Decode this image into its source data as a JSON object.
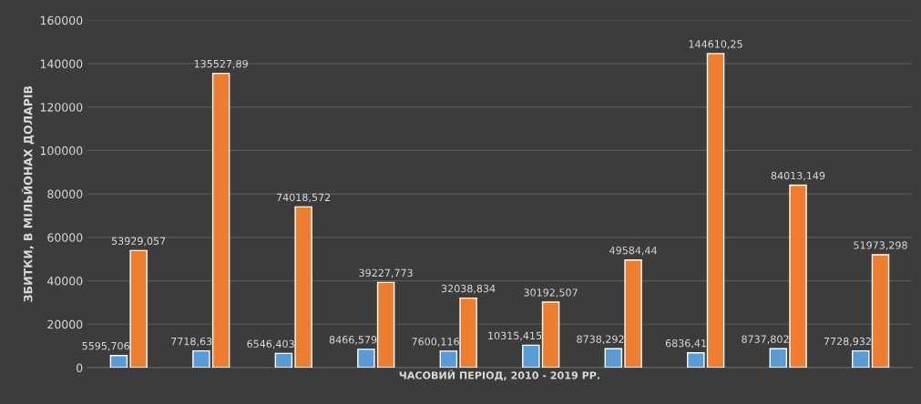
{
  "chart_data": {
    "type": "bar",
    "xlabel": "ЧАСОВИЙ ПЕРІОД, 2010 - 2019 РР.",
    "ylabel": "ЗБИТКИ, В МІЛЬЙОНАХ ДОЛАРІВ",
    "categories": [
      null,
      null,
      null,
      null,
      null,
      null,
      null,
      null,
      null,
      null
    ],
    "series": [
      {
        "color": "#5b9bd5",
        "values": [
          5595.706,
          7718.63,
          6546.403,
          8466.579,
          7600.116,
          10315.415,
          8738.292,
          6836.41,
          8737.802,
          7728.932
        ],
        "value_labels": [
          "5595,706",
          "7718,63",
          "6546,403",
          "8466,579",
          "7600,116",
          "10315,415",
          "8738,292",
          "6836,41",
          "8737,802",
          "7728,932"
        ]
      },
      {
        "color": "#ed7d31",
        "values": [
          53929.057,
          135527.89,
          74018.572,
          39227.773,
          32038.834,
          30192.507,
          49584.44,
          144610.25,
          84013.149,
          51973.298
        ],
        "value_labels": [
          "53929,057",
          "135527,89",
          "74018,572",
          "39227,773",
          "32038,834",
          "30192,507",
          "49584,44",
          "144610,25",
          "84013,149",
          "51973,298"
        ]
      }
    ],
    "ylim": [
      0,
      160000
    ],
    "yticks": [
      0,
      20000,
      40000,
      60000,
      80000,
      100000,
      120000,
      140000,
      160000
    ],
    "grid": "y",
    "tick_labels": "y"
  }
}
